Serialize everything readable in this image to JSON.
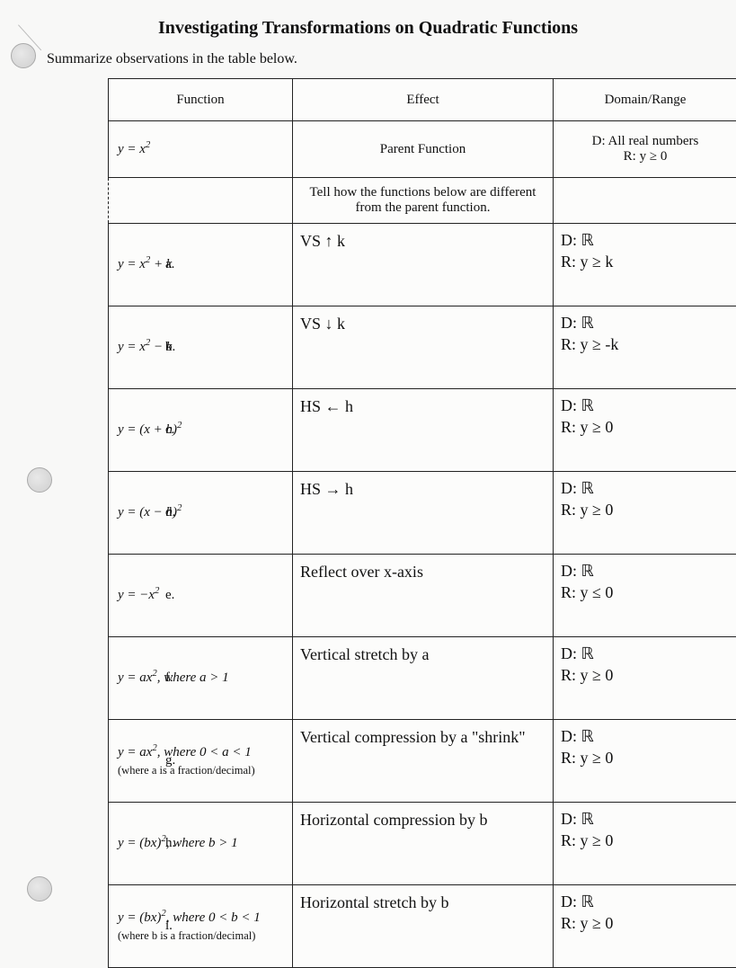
{
  "title": "Investigating Transformations on Quadratic Functions",
  "subtitle": "Summarize observations in the table below.",
  "headers": {
    "col1": "Function",
    "col2": "Effect",
    "col3": "Domain/Range"
  },
  "parent_row": {
    "function": "y = x²",
    "effect": "Parent Function",
    "domain_range_line1": "D: All real numbers",
    "domain_range_line2": "R: y ≥ 0"
  },
  "tell_row": "Tell how the functions below are different from the parent function.",
  "rows": [
    {
      "label": "a.",
      "function_html": "y = x<sup>2</sup> + k",
      "effect": "VS  ↑  k",
      "d": "D: ℝ",
      "r": "R: y ≥ k"
    },
    {
      "label": "b.",
      "function_html": "y = x<sup>2</sup> − k",
      "effect": "VS  ↓  k",
      "d": "D: ℝ",
      "r": "R: y ≥ -k"
    },
    {
      "label": "c.",
      "function_html": "y = (x + h)<sup>2</sup>",
      "effect": "HS  ←  h",
      "d": "D: ℝ",
      "r": "R: y ≥ 0"
    },
    {
      "label": "d.",
      "function_html": "y = (x − h)<sup>2</sup>",
      "effect": "HS  →  h",
      "d": "D: ℝ",
      "r": "R: y ≥ 0"
    },
    {
      "label": "e.",
      "function_html": "y = −x<sup>2</sup>",
      "effect": "Reflect over x-axis",
      "d": "D: ℝ",
      "r": "R: y ≤ 0"
    },
    {
      "label": "f.",
      "function_html": "y = ax<sup>2</sup>, where a > 1",
      "effect": "Vertical stretch by a",
      "d": "D: ℝ",
      "r": "R: y ≥ 0"
    },
    {
      "label": "g.",
      "function_html": "y = ax<sup>2</sup>, where 0 < a < 1",
      "note": "(where a is a fraction/decimal)",
      "effect": "Vertical compression by a \"shrink\"",
      "d": "D: ℝ",
      "r": "R: y ≥ 0"
    },
    {
      "label": "h.",
      "function_html": "y = (bx)<sup>2</sup>, where b > 1",
      "effect": "Horizontal compression by b",
      "d": "D: ℝ",
      "r": "R: y ≥ 0"
    },
    {
      "label": "i.",
      "function_html": "y = (bx)<sup>2</sup>, where 0 < b < 1",
      "note": "(where b is a fraction/decimal)",
      "effect": "Horizontal stretch by b",
      "d": "D: ℝ",
      "r": "R: y ≥ 0"
    }
  ],
  "colors": {
    "page_bg": "#f8f8f7",
    "cell_bg": "#fcfcfb",
    "border": "#222",
    "text": "#111"
  }
}
